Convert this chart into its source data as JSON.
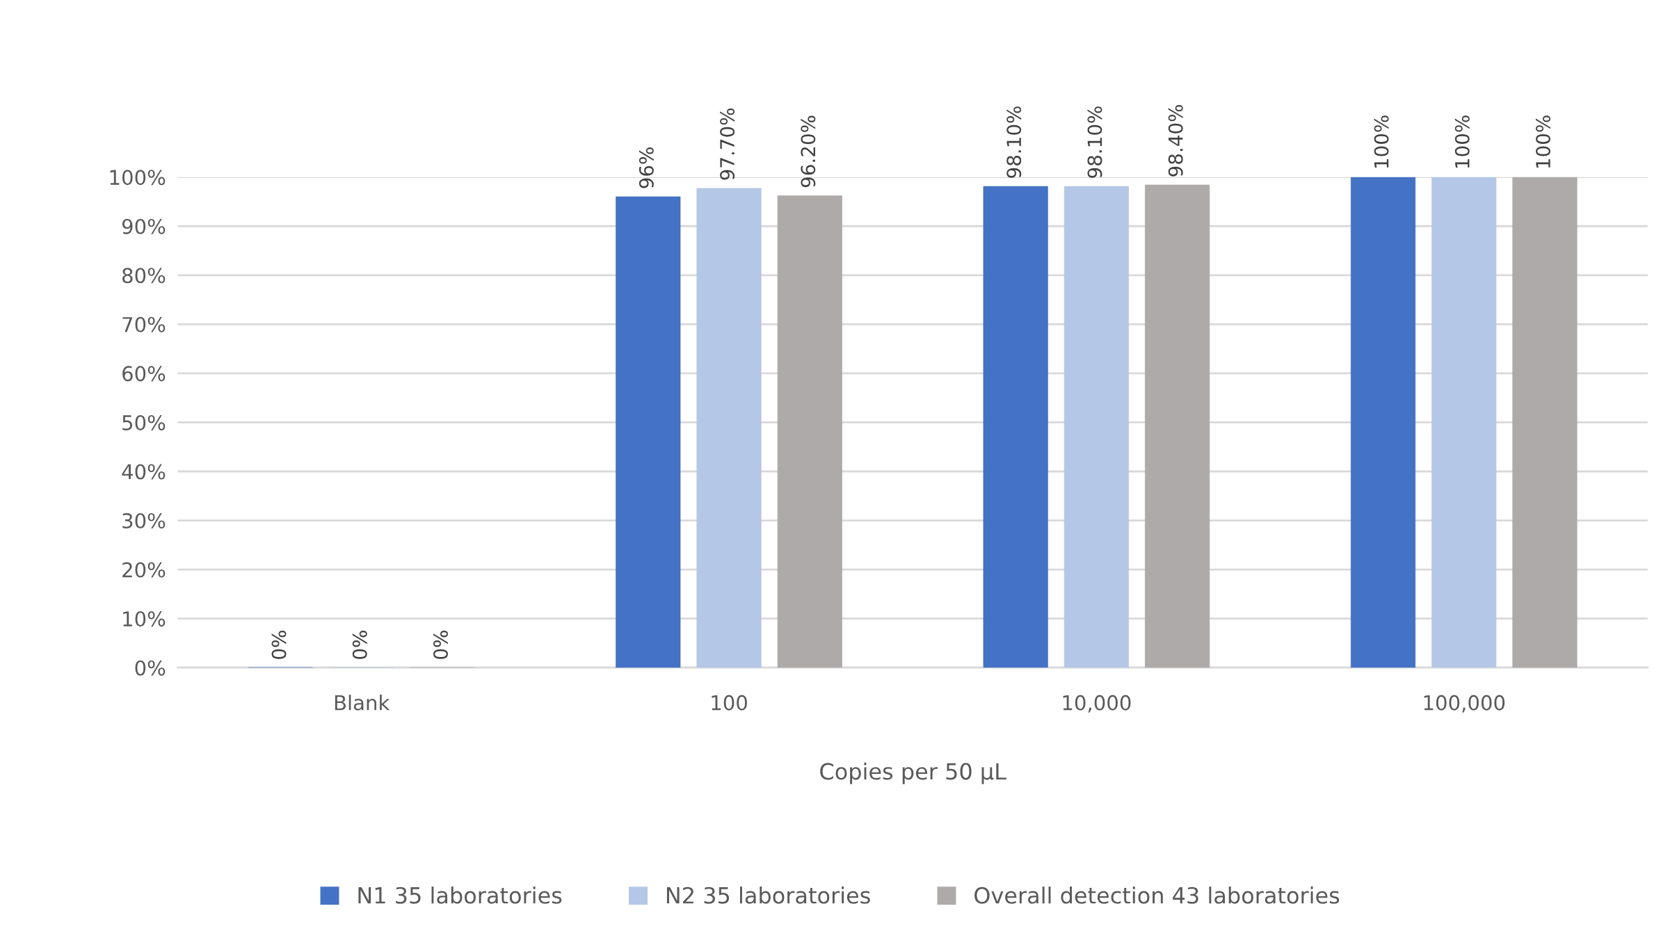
{
  "chart_data": {
    "type": "bar",
    "xlabel": "Copies per 50 µL",
    "categories": [
      "Blank",
      "100",
      "10,000",
      "100,000"
    ],
    "series": [
      {
        "name": "N1 35 laboratories",
        "color": "#4472c4",
        "values": [
          0,
          96,
          98.1,
          100
        ],
        "value_labels": [
          "0%",
          "96%",
          "98.10%",
          "100%"
        ]
      },
      {
        "name": "N2 35 laboratories",
        "color": "#b4c7e7",
        "values": [
          0,
          97.7,
          98.1,
          100
        ],
        "value_labels": [
          "0%",
          "97.70%",
          "98.10%",
          "100%"
        ]
      },
      {
        "name": "Overall detection 43 laboratories",
        "color": "#aeaaaa",
        "values": [
          0,
          96.2,
          98.4,
          100
        ],
        "value_labels": [
          "0%",
          "96.20%",
          "98.40%",
          "100%"
        ]
      }
    ],
    "ylim": [
      0,
      100
    ],
    "yticks": [
      {
        "value": 0,
        "label": "0%"
      },
      {
        "value": 10,
        "label": "10%"
      },
      {
        "value": 20,
        "label": "20%"
      },
      {
        "value": 30,
        "label": "30%"
      },
      {
        "value": 40,
        "label": "40%"
      },
      {
        "value": 50,
        "label": "50%"
      },
      {
        "value": 60,
        "label": "60%"
      },
      {
        "value": 70,
        "label": "70%"
      },
      {
        "value": 80,
        "label": "80%"
      },
      {
        "value": 90,
        "label": "90%"
      },
      {
        "value": 100,
        "label": "100%"
      }
    ],
    "grid": "y",
    "legend": "bottom"
  }
}
